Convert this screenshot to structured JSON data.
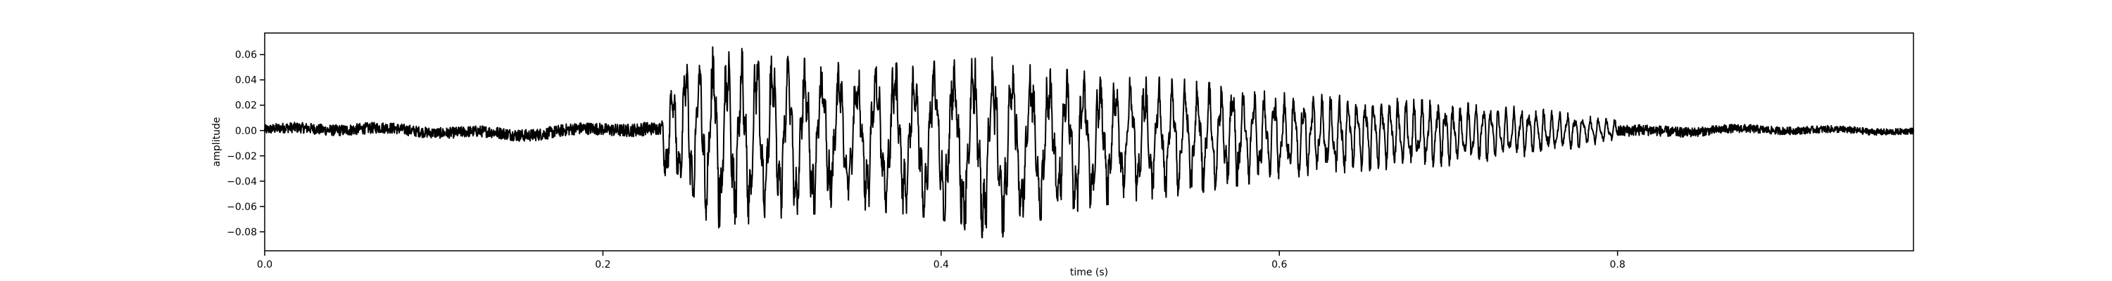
{
  "chart_data": {
    "type": "line",
    "title": "",
    "xlabel": "time (s)",
    "ylabel": "amplitude",
    "xlim": [
      0.0,
      0.975
    ],
    "ylim": [
      -0.095,
      0.077
    ],
    "x_ticks": [
      0.0,
      0.2,
      0.4,
      0.6,
      0.8
    ],
    "x_tick_labels": [
      "0.0",
      "0.2",
      "0.4",
      "0.6",
      "0.8"
    ],
    "y_ticks": [
      0.06,
      0.04,
      0.02,
      0.0,
      -0.02,
      -0.04,
      -0.06,
      -0.08
    ],
    "y_tick_labels": [
      "0.06",
      "0.04",
      "0.02",
      "0.00",
      "−0.02",
      "−0.04",
      "−0.06",
      "−0.08"
    ],
    "grid": false,
    "line_color": "#000000",
    "envelope": {
      "description_points_x": [
        0.0,
        0.05,
        0.1,
        0.15,
        0.2,
        0.225,
        0.234,
        0.236,
        0.25,
        0.27,
        0.3,
        0.35,
        0.4,
        0.43,
        0.46,
        0.5,
        0.55,
        0.57,
        0.6,
        0.65,
        0.7,
        0.75,
        0.8,
        0.85,
        0.9,
        0.975
      ],
      "max_y": [
        0.007,
        0.008,
        0.007,
        0.006,
        0.008,
        0.01,
        0.008,
        0.03,
        0.06,
        0.068,
        0.06,
        0.052,
        0.055,
        0.058,
        0.05,
        0.045,
        0.04,
        0.035,
        0.03,
        0.027,
        0.023,
        0.018,
        0.008,
        0.006,
        0.005,
        0.004
      ],
      "min_y": [
        -0.006,
        -0.007,
        -0.007,
        -0.01,
        -0.008,
        -0.008,
        -0.008,
        -0.04,
        -0.062,
        -0.078,
        -0.07,
        -0.062,
        -0.07,
        -0.088,
        -0.07,
        -0.058,
        -0.05,
        -0.045,
        -0.038,
        -0.032,
        -0.028,
        -0.02,
        -0.008,
        -0.006,
        -0.005,
        -0.004
      ]
    }
  }
}
